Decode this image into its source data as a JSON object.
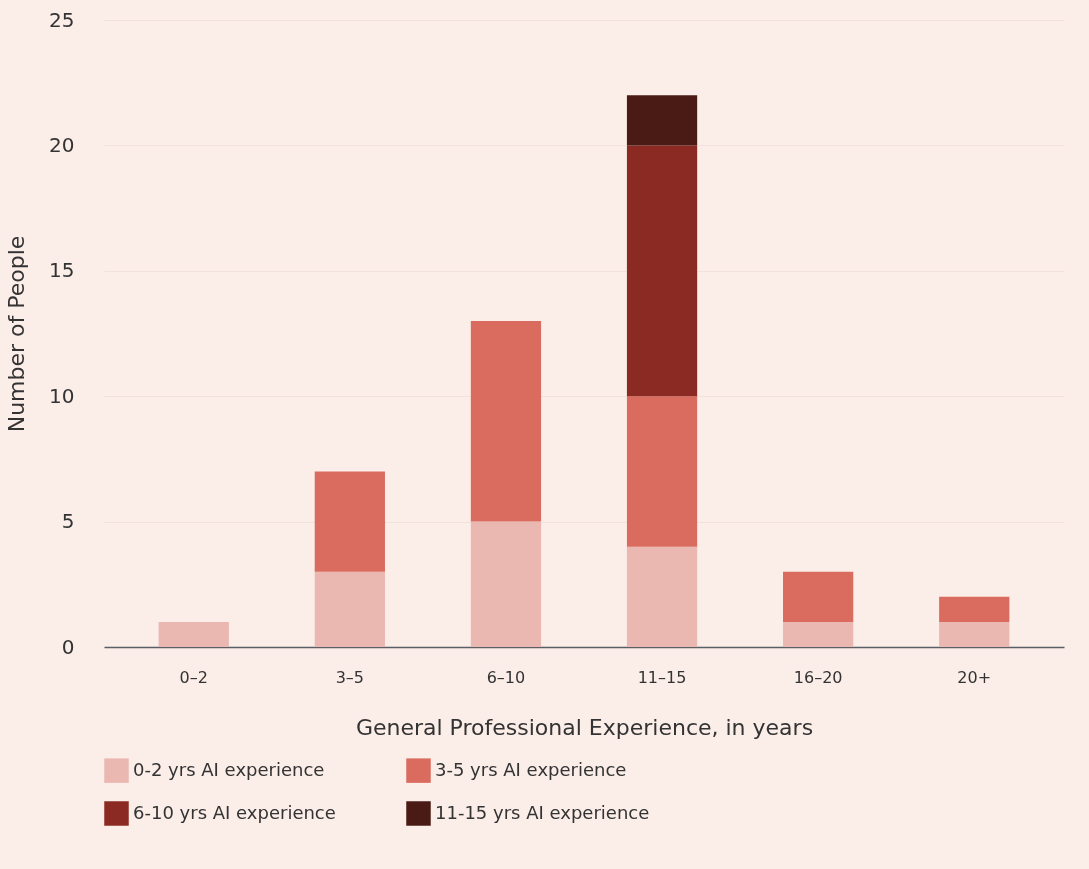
{
  "chart_data": {
    "type": "bar",
    "stacked": true,
    "xlabel": "General Professional Experience, in years",
    "ylabel": "Number of People",
    "categories": [
      "0–2",
      "3–5",
      "6–10",
      "11–15",
      "16–20",
      "20+"
    ],
    "series": [
      {
        "name": "0-2 yrs AI experience",
        "color": "#ebb7b1",
        "values": [
          1,
          3,
          5,
          4,
          1,
          1
        ]
      },
      {
        "name": "3-5 yrs AI experience",
        "color": "#d96c5f",
        "values": [
          0,
          4,
          8,
          6,
          2,
          1
        ]
      },
      {
        "name": "6-10 yrs AI experience",
        "color": "#8b2a22",
        "values": [
          0,
          0,
          0,
          10,
          0,
          0
        ]
      },
      {
        "name": "11-15 yrs AI experience",
        "color": "#4a1a14",
        "values": [
          0,
          0,
          0,
          2,
          0,
          0
        ]
      }
    ],
    "ylim": [
      0,
      25
    ],
    "yticks": [
      0,
      5,
      10,
      15,
      20,
      25
    ],
    "grid": "y",
    "legend": "bottom"
  }
}
